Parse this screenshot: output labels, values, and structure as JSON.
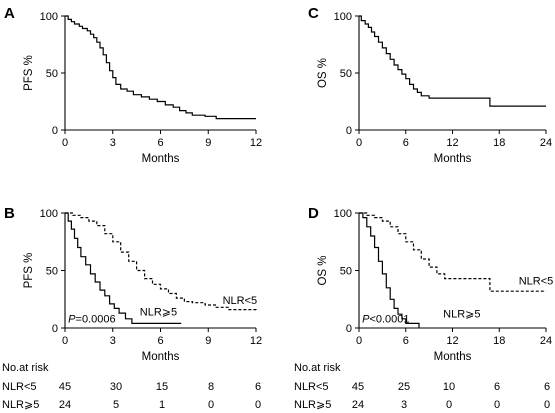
{
  "chart_data": [
    {
      "panel": "A",
      "type": "line",
      "xlabel": "Months",
      "ylabel": "PFS %",
      "xticks": [
        0,
        3,
        6,
        9,
        12
      ],
      "yticks": [
        0,
        50,
        100
      ],
      "xlim": [
        0,
        12
      ],
      "ylim": [
        0,
        100
      ],
      "series": [
        {
          "style": "solid",
          "x": [
            0,
            0.2,
            0.4,
            0.6,
            0.9,
            1.1,
            1.4,
            1.6,
            1.8,
            2.0,
            2.2,
            2.4,
            2.6,
            2.8,
            3.0,
            3.2,
            3.5,
            3.9,
            4.3,
            4.8,
            5.3,
            5.8,
            6.3,
            6.8,
            7.2,
            7.6,
            8.0,
            8.8,
            9.5,
            12.0
          ],
          "y": [
            100,
            97,
            95,
            93,
            91,
            89,
            87,
            84,
            81,
            77,
            72,
            66,
            59,
            52,
            46,
            40,
            36,
            34,
            31,
            29,
            27,
            25,
            22,
            20,
            17,
            15,
            13,
            12,
            10,
            10
          ]
        }
      ]
    },
    {
      "panel": "C",
      "type": "line",
      "xlabel": "Months",
      "ylabel": "OS %",
      "xticks": [
        0,
        6,
        12,
        18,
        24
      ],
      "yticks": [
        0,
        50,
        100
      ],
      "xlim": [
        0,
        24
      ],
      "ylim": [
        0,
        100
      ],
      "series": [
        {
          "style": "solid",
          "x": [
            0,
            0.3,
            0.8,
            1.2,
            1.6,
            2.0,
            2.5,
            3.0,
            3.5,
            4.0,
            4.5,
            5.0,
            5.5,
            6.0,
            6.5,
            7.0,
            7.5,
            8.0,
            9.0,
            16.8,
            24.0
          ],
          "y": [
            100,
            96,
            93,
            90,
            86,
            82,
            77,
            72,
            67,
            62,
            57,
            53,
            49,
            45,
            40,
            36,
            33,
            30,
            28,
            21,
            21
          ]
        }
      ]
    },
    {
      "panel": "B",
      "type": "line",
      "xlabel": "Months",
      "ylabel": "PFS %",
      "xticks": [
        0,
        3,
        6,
        9,
        12
      ],
      "yticks": [
        0,
        50,
        100
      ],
      "xlim": [
        0,
        12
      ],
      "ylim": [
        0,
        100
      ],
      "annotations": [
        {
          "text_italic": "P",
          "text": "=0.0006",
          "x": 0.2,
          "y": 5
        },
        {
          "text": "NLR⩾5",
          "x": 4.7,
          "y": 11
        },
        {
          "text": "NLR<5",
          "x": 9.9,
          "y": 21
        }
      ],
      "series": [
        {
          "name": "NLR<5",
          "style": "dashed",
          "x": [
            0,
            0.5,
            1.0,
            1.5,
            2.0,
            2.5,
            3.0,
            3.5,
            4.0,
            4.5,
            5.0,
            5.5,
            6.0,
            6.5,
            7.0,
            7.5,
            8.0,
            8.8,
            9.5,
            10.3,
            12.0
          ],
          "y": [
            100,
            98,
            96,
            93,
            89,
            82,
            75,
            66,
            58,
            50,
            43,
            38,
            34,
            30,
            26,
            23,
            22,
            20,
            18,
            16,
            15
          ]
        },
        {
          "name": "NLR⩾5",
          "style": "solid",
          "x": [
            0,
            0.2,
            0.4,
            0.6,
            0.8,
            1.0,
            1.3,
            1.6,
            1.9,
            2.2,
            2.5,
            2.8,
            3.1,
            3.4,
            3.8,
            4.2,
            5.0,
            7.3
          ],
          "y": [
            100,
            93,
            86,
            78,
            70,
            62,
            55,
            47,
            40,
            33,
            28,
            21,
            17,
            13,
            8,
            4,
            4,
            4
          ]
        }
      ]
    },
    {
      "panel": "D",
      "type": "line",
      "xlabel": "Months",
      "ylabel": "OS %",
      "xticks": [
        0,
        6,
        12,
        18,
        24
      ],
      "yticks": [
        0,
        50,
        100
      ],
      "xlim": [
        0,
        24
      ],
      "ylim": [
        0,
        100
      ],
      "annotations": [
        {
          "text_italic": "P",
          "text": "<0.0001",
          "x": 0.4,
          "y": 5
        },
        {
          "text": "NLR⩾5",
          "x": 10.8,
          "y": 9
        },
        {
          "text": "NLR<5",
          "x": 20.5,
          "y": 38
        }
      ],
      "series": [
        {
          "name": "NLR<5",
          "style": "dashed",
          "x": [
            0,
            1.0,
            2.0,
            3.0,
            4.0,
            5.0,
            6.0,
            7.0,
            8.0,
            9.0,
            10.0,
            11.0,
            12.0,
            16.8,
            24.0
          ],
          "y": [
            100,
            98,
            96,
            93,
            88,
            82,
            75,
            68,
            60,
            53,
            47,
            43,
            43,
            32,
            32
          ]
        },
        {
          "name": "NLR⩾5",
          "style": "solid",
          "x": [
            0,
            0.5,
            1.0,
            1.5,
            2.0,
            2.5,
            3.0,
            3.5,
            4.0,
            4.5,
            5.0,
            5.5,
            6.0,
            7.0,
            7.7
          ],
          "y": [
            100,
            96,
            88,
            80,
            70,
            58,
            47,
            35,
            25,
            17,
            12,
            8,
            4,
            4,
            0
          ]
        }
      ]
    }
  ],
  "panel_labels": [
    "A",
    "B",
    "C",
    "D"
  ],
  "risk_tables": [
    {
      "title": "No.at risk",
      "rows": [
        {
          "label": "NLR<5",
          "values": [
            "45",
            "30",
            "15",
            "8",
            "6"
          ]
        },
        {
          "label": "NLR⩾5",
          "values": [
            "24",
            "5",
            "1",
            "0",
            "0"
          ]
        }
      ]
    },
    {
      "title": "No.at risk",
      "rows": [
        {
          "label": "NLR<5",
          "values": [
            "45",
            "25",
            "10",
            "6",
            "6"
          ]
        },
        {
          "label": "NLR⩾5",
          "values": [
            "24",
            "3",
            "0",
            "0",
            "0"
          ]
        }
      ]
    }
  ]
}
